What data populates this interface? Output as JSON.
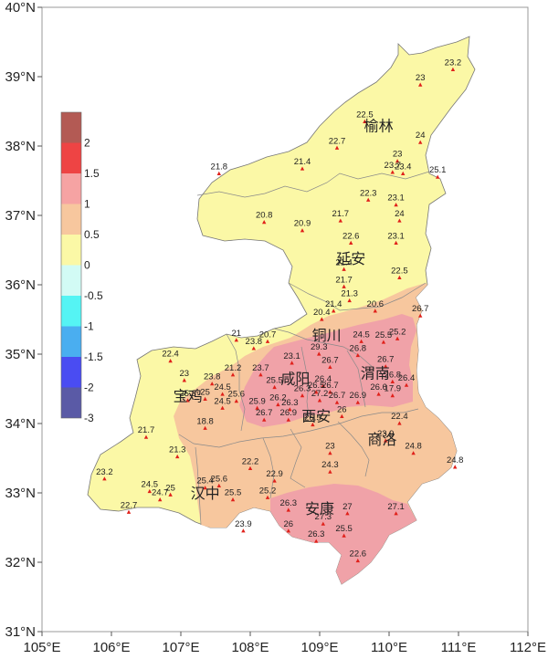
{
  "axes": {
    "x_ticks": [
      "105°E",
      "106°E",
      "107°E",
      "108°E",
      "109°E",
      "110°E",
      "111°E",
      "112°E"
    ],
    "y_ticks": [
      "40°N",
      "39°N",
      "38°N",
      "37°N",
      "36°N",
      "35°N",
      "34°N",
      "33°N",
      "32°N",
      "31°N"
    ],
    "xlim": [
      105,
      112
    ],
    "ylim": [
      31,
      40
    ]
  },
  "legend": {
    "items": [
      {
        "label": "2",
        "color": "#b35a54"
      },
      {
        "label": "1.5",
        "color": "#ee4444"
      },
      {
        "label": "1",
        "color": "#f6a3a3"
      },
      {
        "label": "0.5",
        "color": "#f7c79e"
      },
      {
        "label": "0",
        "color": "#fbf8a6"
      },
      {
        "label": "-0.5",
        "color": "#d2fbf5"
      },
      {
        "label": "-1",
        "color": "#55f4f4"
      },
      {
        "label": "-1.5",
        "color": "#4aaef0"
      },
      {
        "label": "-2",
        "color": "#4a4cf2"
      },
      {
        "label": "-3",
        "color": "#5a5aa6"
      }
    ]
  },
  "cities": [
    {
      "name": "榆林",
      "lon": 109.85,
      "lat": 38.22
    },
    {
      "name": "延安",
      "lon": 109.45,
      "lat": 36.3
    },
    {
      "name": "铜川",
      "lon": 109.1,
      "lat": 35.2
    },
    {
      "name": "咸阳",
      "lon": 108.65,
      "lat": 34.57
    },
    {
      "name": "渭南",
      "lon": 109.8,
      "lat": 34.65
    },
    {
      "name": "宝鸡",
      "lon": 107.1,
      "lat": 34.32
    },
    {
      "name": "西安",
      "lon": 108.95,
      "lat": 34.03
    },
    {
      "name": "商洛",
      "lon": 109.9,
      "lat": 33.7
    },
    {
      "name": "汉中",
      "lon": 107.35,
      "lat": 32.92
    },
    {
      "name": "安康",
      "lon": 109.0,
      "lat": 32.7
    }
  ],
  "stations": [
    {
      "value": "23.2",
      "lon": 110.92,
      "lat": 39.1
    },
    {
      "value": "23",
      "lon": 110.45,
      "lat": 38.88
    },
    {
      "value": "22.5",
      "lon": 109.65,
      "lat": 38.35
    },
    {
      "value": "24",
      "lon": 110.45,
      "lat": 38.05
    },
    {
      "value": "22.7",
      "lon": 109.25,
      "lat": 37.97
    },
    {
      "value": "23",
      "lon": 110.12,
      "lat": 37.78
    },
    {
      "value": "23.7",
      "lon": 110.05,
      "lat": 37.62
    },
    {
      "value": "23.4",
      "lon": 110.2,
      "lat": 37.6
    },
    {
      "value": "21.4",
      "lon": 108.75,
      "lat": 37.67
    },
    {
      "value": "21.8",
      "lon": 107.55,
      "lat": 37.6
    },
    {
      "value": "25.1",
      "lon": 110.7,
      "lat": 37.55
    },
    {
      "value": "22.3",
      "lon": 109.7,
      "lat": 37.22
    },
    {
      "value": "23.1",
      "lon": 110.1,
      "lat": 37.15
    },
    {
      "value": "20.8",
      "lon": 108.2,
      "lat": 36.9
    },
    {
      "value": "21.7",
      "lon": 109.3,
      "lat": 36.92
    },
    {
      "value": "24",
      "lon": 110.15,
      "lat": 36.92
    },
    {
      "value": "20.9",
      "lon": 108.75,
      "lat": 36.78
    },
    {
      "value": "22.6",
      "lon": 109.45,
      "lat": 36.6
    },
    {
      "value": "23.1",
      "lon": 110.1,
      "lat": 36.6
    },
    {
      "value": "21.4",
      "lon": 109.35,
      "lat": 36.22
    },
    {
      "value": "22.5",
      "lon": 110.15,
      "lat": 36.1
    },
    {
      "value": "21.7",
      "lon": 109.35,
      "lat": 35.97
    },
    {
      "value": "21.3",
      "lon": 109.43,
      "lat": 35.77
    },
    {
      "value": "20.6",
      "lon": 109.8,
      "lat": 35.62
    },
    {
      "value": "21.4",
      "lon": 109.2,
      "lat": 35.62
    },
    {
      "value": "20.4",
      "lon": 109.03,
      "lat": 35.5
    },
    {
      "value": "26.7",
      "lon": 110.45,
      "lat": 35.55
    },
    {
      "value": "21",
      "lon": 107.8,
      "lat": 35.2
    },
    {
      "value": "20.7",
      "lon": 108.25,
      "lat": 35.18
    },
    {
      "value": "23.8",
      "lon": 108.05,
      "lat": 35.08
    },
    {
      "value": "24.5",
      "lon": 109.6,
      "lat": 35.18
    },
    {
      "value": "25.5",
      "lon": 109.92,
      "lat": 35.17
    },
    {
      "value": "25.2",
      "lon": 110.12,
      "lat": 35.22
    },
    {
      "value": "29.3",
      "lon": 108.99,
      "lat": 35.0
    },
    {
      "value": "26.8",
      "lon": 109.55,
      "lat": 34.98
    },
    {
      "value": "22.4",
      "lon": 106.85,
      "lat": 34.9
    },
    {
      "value": "23.1",
      "lon": 108.6,
      "lat": 34.87
    },
    {
      "value": "26.7",
      "lon": 109.15,
      "lat": 34.81
    },
    {
      "value": "26.7",
      "lon": 109.95,
      "lat": 34.82
    },
    {
      "value": "23.7",
      "lon": 108.15,
      "lat": 34.7
    },
    {
      "value": "21.2",
      "lon": 107.75,
      "lat": 34.7
    },
    {
      "value": "23",
      "lon": 107.05,
      "lat": 34.62
    },
    {
      "value": "23.8",
      "lon": 107.45,
      "lat": 34.57
    },
    {
      "value": "25.5",
      "lon": 108.35,
      "lat": 34.52
    },
    {
      "value": "26.4",
      "lon": 109.05,
      "lat": 34.54
    },
    {
      "value": "26.5",
      "lon": 108.95,
      "lat": 34.45
    },
    {
      "value": "26.7",
      "lon": 109.15,
      "lat": 34.45
    },
    {
      "value": "26.8",
      "lon": 110.05,
      "lat": 34.6
    },
    {
      "value": "26.4",
      "lon": 110.25,
      "lat": 34.55
    },
    {
      "value": "24.5",
      "lon": 107.6,
      "lat": 34.42
    },
    {
      "value": "25",
      "lon": 107.35,
      "lat": 34.35
    },
    {
      "value": "25.3",
      "lon": 107.1,
      "lat": 34.33
    },
    {
      "value": "25.6",
      "lon": 107.8,
      "lat": 34.32
    },
    {
      "value": "26.3",
      "lon": 108.75,
      "lat": 34.4
    },
    {
      "value": "27.2",
      "lon": 109.0,
      "lat": 34.33
    },
    {
      "value": "26.6",
      "lon": 109.85,
      "lat": 34.42
    },
    {
      "value": "17.9",
      "lon": 110.05,
      "lat": 34.4
    },
    {
      "value": "26.2",
      "lon": 108.4,
      "lat": 34.27
    },
    {
      "value": "24.5",
      "lon": 107.6,
      "lat": 34.22
    },
    {
      "value": "25.9",
      "lon": 108.1,
      "lat": 34.22
    },
    {
      "value": "26.3",
      "lon": 108.57,
      "lat": 34.2
    },
    {
      "value": "26.7",
      "lon": 109.25,
      "lat": 34.3
    },
    {
      "value": "26.9",
      "lon": 109.55,
      "lat": 34.3
    },
    {
      "value": "26.7",
      "lon": 108.2,
      "lat": 34.05
    },
    {
      "value": "26.9",
      "lon": 108.55,
      "lat": 34.05
    },
    {
      "value": "26",
      "lon": 109.32,
      "lat": 34.1
    },
    {
      "value": "26.5",
      "lon": 108.9,
      "lat": 33.98
    },
    {
      "value": "22.4",
      "lon": 110.15,
      "lat": 34.0
    },
    {
      "value": "18.8",
      "lon": 107.35,
      "lat": 33.93
    },
    {
      "value": "21.7",
      "lon": 106.5,
      "lat": 33.8
    },
    {
      "value": "23.9",
      "lon": 109.95,
      "lat": 33.75
    },
    {
      "value": "24.8",
      "lon": 110.35,
      "lat": 33.57
    },
    {
      "value": "23",
      "lon": 109.15,
      "lat": 33.57
    },
    {
      "value": "21.3",
      "lon": 106.95,
      "lat": 33.52
    },
    {
      "value": "24.8",
      "lon": 110.95,
      "lat": 33.37
    },
    {
      "value": "24.3",
      "lon": 109.15,
      "lat": 33.3
    },
    {
      "value": "22.2",
      "lon": 108.0,
      "lat": 33.35
    },
    {
      "value": "23.2",
      "lon": 105.9,
      "lat": 33.2
    },
    {
      "value": "22.9",
      "lon": 108.35,
      "lat": 33.17
    },
    {
      "value": "25.4",
      "lon": 107.35,
      "lat": 33.07
    },
    {
      "value": "25.6",
      "lon": 107.55,
      "lat": 33.1
    },
    {
      "value": "24.5",
      "lon": 106.55,
      "lat": 33.02
    },
    {
      "value": "25",
      "lon": 106.85,
      "lat": 32.97
    },
    {
      "value": "24.7",
      "lon": 106.7,
      "lat": 32.9
    },
    {
      "value": "25.5",
      "lon": 107.75,
      "lat": 32.9
    },
    {
      "value": "25.2",
      "lon": 108.25,
      "lat": 32.93
    },
    {
      "value": "22.7",
      "lon": 106.25,
      "lat": 32.72
    },
    {
      "value": "26.3",
      "lon": 108.55,
      "lat": 32.75
    },
    {
      "value": "27",
      "lon": 109.4,
      "lat": 32.7
    },
    {
      "value": "27.1",
      "lon": 110.1,
      "lat": 32.7
    },
    {
      "value": "27.3",
      "lon": 109.05,
      "lat": 32.55
    },
    {
      "value": "23.9",
      "lon": 107.9,
      "lat": 32.45
    },
    {
      "value": "26",
      "lon": 108.55,
      "lat": 32.45
    },
    {
      "value": "25.5",
      "lon": 109.35,
      "lat": 32.38
    },
    {
      "value": "26.3",
      "lon": 108.95,
      "lat": 32.3
    },
    {
      "value": "22.6",
      "lon": 109.55,
      "lat": 32.02
    }
  ]
}
